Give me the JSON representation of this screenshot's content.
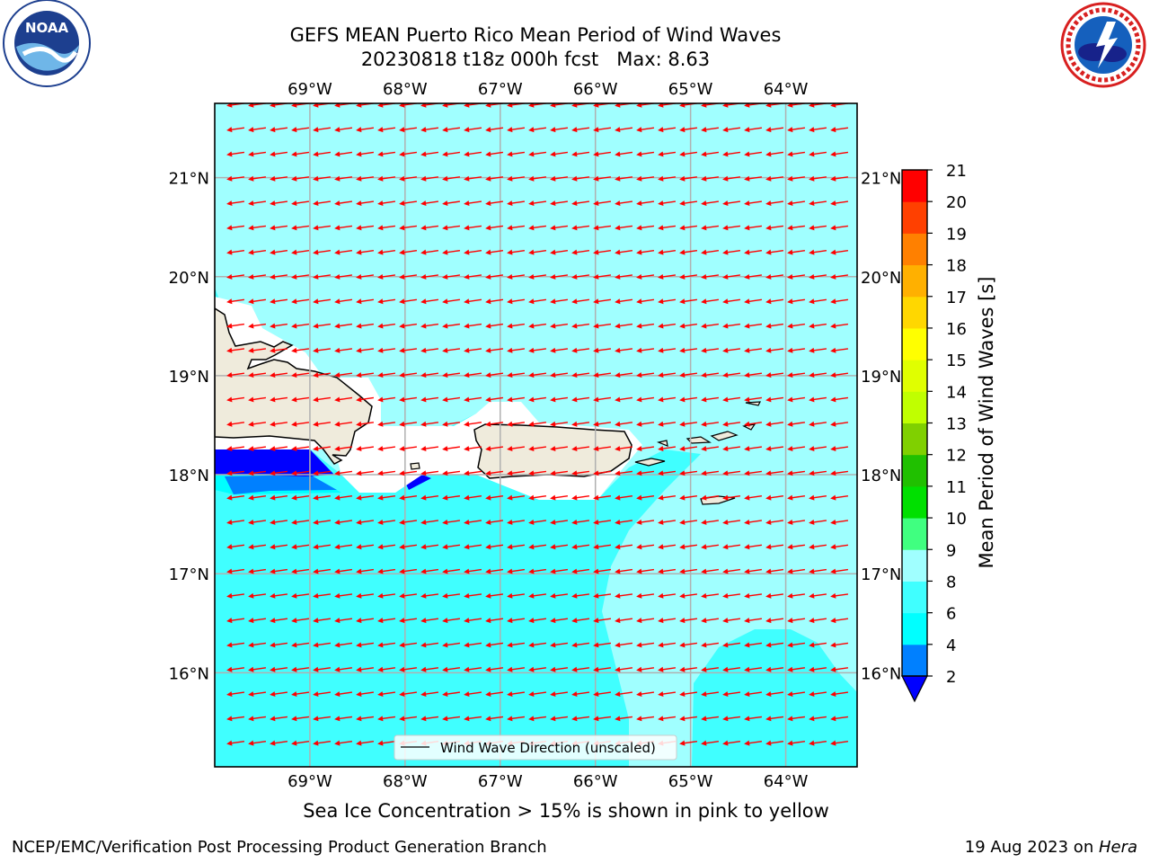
{
  "header": {
    "title_line1": "GEFS MEAN Puerto Rico Mean Period of Wind Waves",
    "title_line2": "20230818 t18z 000h fcst   Max: 8.63"
  },
  "logos": {
    "left": {
      "name": "noaa-logo",
      "text": "NOAA",
      "ring_text": "NATIONAL OCEANIC AND ATMOSPHERIC ADMINISTRATION · U.S. DEPARTMENT OF COMMERCE"
    },
    "right": {
      "name": "nws-logo",
      "ring_text": "NATIONAL WEATHER SERVICE"
    }
  },
  "map": {
    "lon_labels": [
      "69°W",
      "68°W",
      "67°W",
      "66°W",
      "65°W",
      "64°W"
    ],
    "lat_labels": [
      "21°N",
      "20°N",
      "19°N",
      "18°N",
      "17°N",
      "16°N"
    ],
    "lon_values": [
      -69,
      -68,
      -67,
      -66,
      -65,
      -64
    ],
    "lat_values": [
      21,
      20,
      19,
      18,
      17,
      16
    ],
    "extent": {
      "lon": [
        -70,
        -63.25
      ],
      "lat": [
        15.05,
        21.75
      ]
    },
    "legend_label": "Wind Wave Direction (unscaled)",
    "land_color": "#efebdc",
    "arrow_color": "#ff0000",
    "arrow_direction": "toward west-southwest"
  },
  "colorbar": {
    "label": "Mean Period of Wind Waves [s]",
    "ticks": [
      "2",
      "4",
      "6",
      "8",
      "9",
      "10",
      "11",
      "12",
      "13",
      "14",
      "15",
      "16",
      "17",
      "18",
      "19",
      "20",
      "21"
    ],
    "colors": [
      "#0000ff",
      "#0080ff",
      "#00ffff",
      "#40ffff",
      "#a0ffff",
      "#40ff80",
      "#00e000",
      "#20c000",
      "#80d000",
      "#c0ff00",
      "#e0ff00",
      "#ffff00",
      "#ffd700",
      "#ffb000",
      "#ff8000",
      "#ff4000",
      "#ff0000"
    ],
    "extend": "min"
  },
  "chart_data": {
    "type": "heatmap",
    "title": "GEFS MEAN Puerto Rico Mean Period of Wind Waves",
    "subtitle": "20230818 t18z 000h fcst   Max: 8.63",
    "variable": "Mean Period of Wind Waves [s]",
    "max_value": 8.63,
    "levels": [
      2,
      4,
      6,
      8,
      9,
      10,
      11,
      12,
      13,
      14,
      15,
      16,
      17,
      18,
      19,
      20,
      21
    ],
    "dominant_ranges": [
      {
        "area": "north of Puerto Rico / Hispaniola",
        "range": "8-9"
      },
      {
        "area": "south of Puerto Rico / Caribbean",
        "range": "6-8"
      },
      {
        "area": "southeast of Virgin Islands",
        "range": "8-9"
      },
      {
        "area": "Mona Passage / near south coast of Hispaniola",
        "range": "2-6"
      }
    ],
    "xlabel": "",
    "ylabel": "",
    "xlim": [
      -70,
      -63.25
    ],
    "ylim": [
      15.05,
      21.75
    ]
  },
  "footer": {
    "sea_ice_note": "Sea Ice Concentration > 15% is shown in pink to yellow",
    "left": "NCEP/EMC/Verification Post Processing Product Generation Branch",
    "right_prefix": "19 Aug 2023 on ",
    "right_machine": "Hera"
  }
}
